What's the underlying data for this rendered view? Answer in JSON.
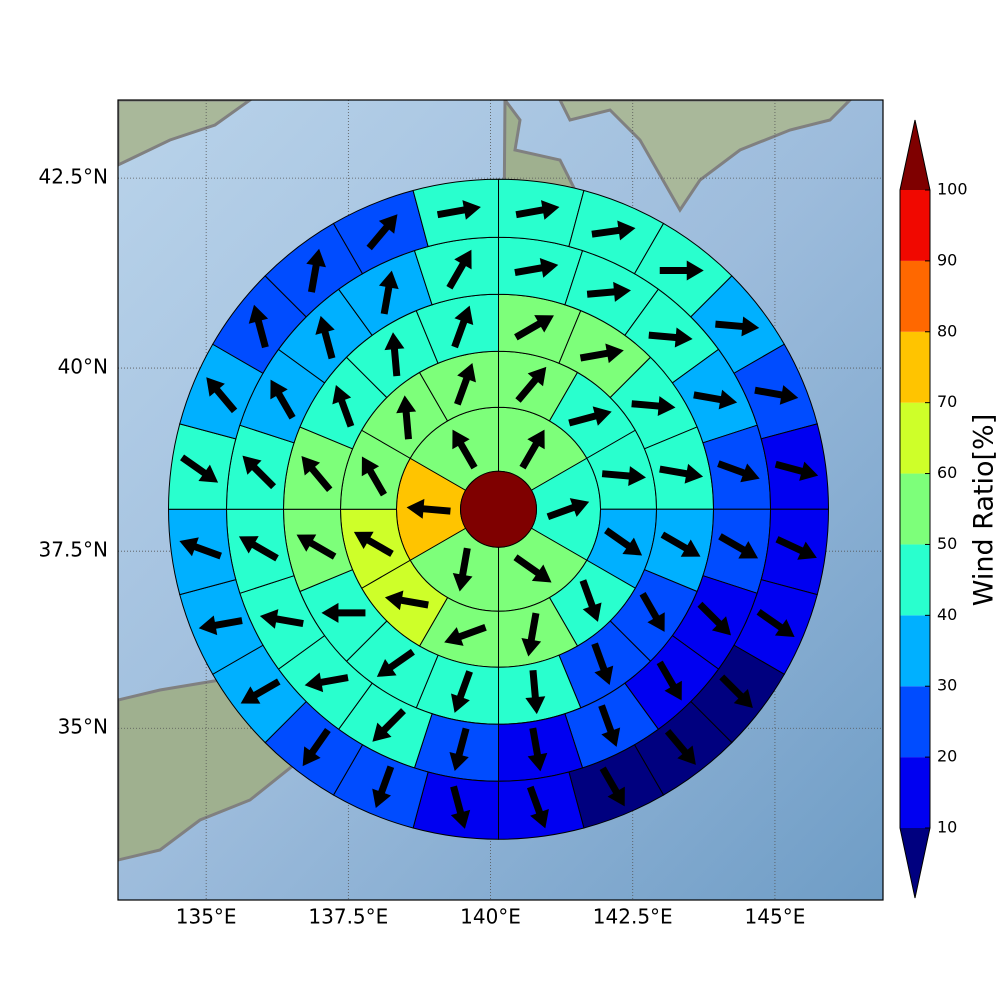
{
  "chart_data": {
    "type": "polar-sector-map",
    "xlim": [
      133.45,
      146.9
    ],
    "ylim": [
      32.5,
      43.5
    ],
    "xticks": [
      {
        "value": 135,
        "label": "135°E"
      },
      {
        "value": 137.5,
        "label": "137.5°E"
      },
      {
        "value": 140,
        "label": "140°E"
      },
      {
        "value": 142.5,
        "label": "142.5°E"
      },
      {
        "value": 145,
        "label": "145°E"
      }
    ],
    "yticks": [
      {
        "value": 35,
        "label": "35°N"
      },
      {
        "value": 37.5,
        "label": "37.5°N"
      },
      {
        "value": 40,
        "label": "40°N"
      },
      {
        "value": 42.5,
        "label": "42.5°N"
      }
    ],
    "grid": true,
    "center": [
      140.14,
      38.08
    ],
    "center_value": 105,
    "rings": [
      {
        "values": [
          55,
          45,
          55,
          55,
          75,
          55
        ],
        "arrows": [
          30,
          70,
          125,
          190,
          275,
          330
        ]
      },
      {
        "values": [
          55,
          45,
          45,
          35,
          45,
          55,
          55,
          65,
          65,
          55,
          55,
          55
        ],
        "arrows": [
          40,
          75,
          95,
          125,
          160,
          190,
          250,
          280,
          300,
          330,
          355,
          20
        ]
      },
      {
        "values": [
          55,
          55,
          45,
          45,
          35,
          25,
          25,
          45,
          45,
          45,
          45,
          55,
          55,
          45,
          45,
          45
        ],
        "arrows": [
          60,
          80,
          95,
          100,
          120,
          150,
          160,
          175,
          200,
          235,
          270,
          300,
          320,
          340,
          355,
          20
        ]
      },
      {
        "values": [
          45,
          45,
          45,
          35,
          25,
          25,
          15,
          15,
          25,
          15,
          25,
          45,
          45,
          45,
          45,
          45,
          35,
          35,
          35,
          45
        ],
        "arrows": [
          80,
          85,
          95,
          100,
          110,
          120,
          135,
          150,
          160,
          170,
          195,
          225,
          260,
          280,
          300,
          315,
          330,
          345,
          10,
          30
        ]
      },
      {
        "values": [
          45,
          45,
          45,
          35,
          25,
          15,
          15,
          15,
          5,
          5,
          5,
          15,
          15,
          25,
          25,
          35,
          35,
          35,
          45,
          35,
          25,
          25,
          25,
          45
        ],
        "arrows": [
          80,
          82,
          90,
          95,
          100,
          105,
          115,
          125,
          135,
          140,
          150,
          160,
          165,
          200,
          215,
          240,
          260,
          290,
          125,
          320,
          345,
          10,
          40,
          80
        ]
      }
    ],
    "colorbar": {
      "label": "Wind Ratio[%]",
      "ticks": [
        10,
        20,
        30,
        40,
        50,
        60,
        70,
        80,
        90,
        100
      ],
      "colors": [
        "#0000f1",
        "#004cff",
        "#00b0ff",
        "#29ffce",
        "#7dff7a",
        "#ceff29",
        "#ffc400",
        "#ff6800",
        "#f10800"
      ],
      "under": "#00007f",
      "over": "#7f0000"
    }
  }
}
